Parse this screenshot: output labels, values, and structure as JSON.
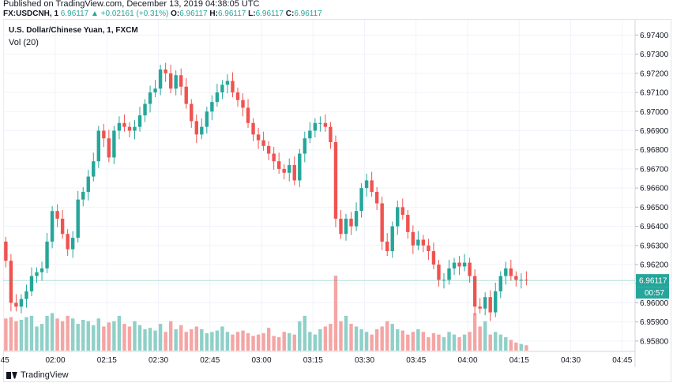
{
  "header": {
    "published": "Published on TradingView.com, December 13, 2019 04:38:05 UTC",
    "symbol": "FX:USDCNH, 1",
    "last": "6.96117",
    "change_arrow": "▲",
    "change": "+0.02161 (+0.31%)",
    "o_label": "O:",
    "o_value": "6.96117",
    "h_label": "H:",
    "h_value": "6.96117",
    "l_label": "L:",
    "l_value": "6.96117",
    "c_label": "C:",
    "c_value": "6.96117"
  },
  "legend": {
    "title": "U.S. Dollar/Chinese Yuan, 1, FXCM",
    "volume": "Vol (20)"
  },
  "footer": {
    "brand": "TradingView",
    "logo_icon": "tradingview-logo-icon"
  },
  "colors": {
    "up": "#26a69a",
    "down": "#ef5350",
    "up_vol": "#8fd0c8",
    "down_vol": "#f4a5a4",
    "grid": "#f0f3fa",
    "price_line": "#26a69a"
  },
  "chart_data": {
    "type": "candlestick",
    "symbol": "USDCNH",
    "interval_minutes": 1,
    "current_price": "6.96117",
    "countdown": "00:57",
    "price_ticks": [
      "6.97400",
      "6.97300",
      "6.97200",
      "6.97100",
      "6.97000",
      "6.96900",
      "6.96800",
      "6.96700",
      "6.96600",
      "6.96500",
      "6.96400",
      "6.96300",
      "6.96200",
      "6.96100",
      "6.96000",
      "6.95900",
      "6.95800"
    ],
    "ylim": [
      6.9575,
      6.9748
    ],
    "time_ticks": [
      {
        "label": ":45",
        "minute": -15
      },
      {
        "label": "02:00",
        "minute": 0
      },
      {
        "label": "02:15",
        "minute": 15
      },
      {
        "label": "02:30",
        "minute": 30
      },
      {
        "label": "02:45",
        "minute": 45
      },
      {
        "label": "03:00",
        "minute": 60
      },
      {
        "label": "03:15",
        "minute": 75
      },
      {
        "label": "03:30",
        "minute": 90
      },
      {
        "label": "03:45",
        "minute": 105
      },
      {
        "label": "04:00",
        "minute": 120
      },
      {
        "label": "04:15",
        "minute": 135
      },
      {
        "label": "04:30",
        "minute": 150
      },
      {
        "label": "04:45",
        "minute": 165
      }
    ],
    "closes": [
      6.9622,
      6.96,
      6.9598,
      6.9602,
      6.9606,
      6.9614,
      6.9616,
      6.9618,
      6.9632,
      6.9648,
      6.9644,
      6.9636,
      6.9628,
      6.9634,
      6.9654,
      6.9658,
      6.9666,
      6.9674,
      6.969,
      6.9686,
      6.9676,
      6.969,
      6.9694,
      6.9692,
      6.969,
      6.9692,
      6.9698,
      6.9704,
      6.971,
      6.9712,
      6.9722,
      6.972,
      6.9712,
      6.9719,
      6.9713,
      6.9704,
      6.9695,
      6.9688,
      6.9692,
      6.97,
      6.9705,
      6.971,
      6.9714,
      6.9716,
      6.971,
      6.9706,
      6.9702,
      6.9694,
      6.9688,
      6.9685,
      6.9682,
      6.9678,
      6.9674,
      6.967,
      6.9668,
      6.9672,
      6.9664,
      6.9678,
      6.9686,
      6.969,
      6.9694,
      6.9694,
      6.9692,
      6.9684,
      6.9644,
      6.9636,
      6.9644,
      6.964,
      6.9648,
      6.966,
      6.9664,
      6.9658,
      6.9652,
      6.9632,
      6.9627,
      6.964,
      6.965,
      6.9646,
      6.9637,
      6.963,
      6.9633,
      6.963,
      6.9627,
      6.962,
      6.9612,
      6.9612,
      6.9618,
      6.9621,
      6.9619,
      6.9621,
      6.9614,
      6.9598,
      6.9597,
      6.9603,
      6.9595,
      6.9606,
      6.9614,
      6.9618,
      6.9614,
      6.9612,
      6.9612,
      6.96117
    ],
    "volumes": [
      24,
      25,
      22,
      23,
      25,
      26,
      18,
      20,
      26,
      28,
      24,
      22,
      26,
      24,
      20,
      23,
      22,
      19,
      24,
      18,
      21,
      22,
      26,
      20,
      18,
      22,
      19,
      16,
      17,
      15,
      20,
      14,
      22,
      16,
      19,
      14,
      16,
      18,
      16,
      13,
      14,
      15,
      18,
      14,
      12,
      14,
      15,
      13,
      11,
      12,
      13,
      17,
      11,
      10,
      14,
      13,
      12,
      22,
      26,
      14,
      12,
      16,
      18,
      20,
      56,
      22,
      26,
      20,
      18,
      16,
      14,
      12,
      16,
      18,
      22,
      20,
      16,
      15,
      12,
      14,
      16,
      14,
      10,
      13,
      12,
      10,
      14,
      12,
      10,
      12,
      14,
      28,
      18,
      22,
      12,
      14,
      12,
      10,
      8,
      6,
      5,
      4
    ]
  }
}
